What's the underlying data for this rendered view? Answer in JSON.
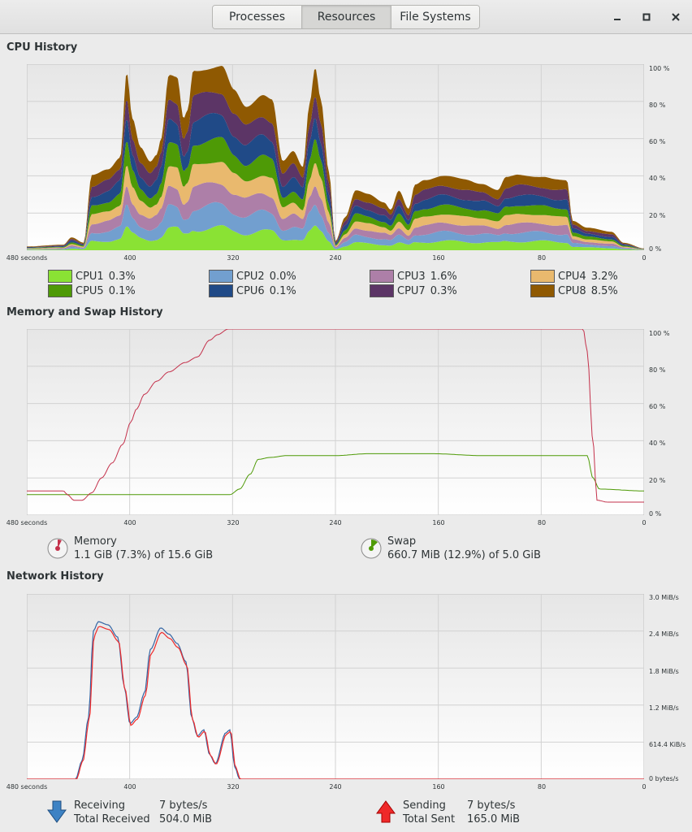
{
  "header": {
    "tabs": [
      {
        "label": "Processes",
        "active": false
      },
      {
        "label": "Resources",
        "active": true
      },
      {
        "label": "File Systems",
        "active": false
      }
    ]
  },
  "cpu": {
    "title": "CPU History",
    "x_ticks": [
      "480 seconds",
      "400",
      "320",
      "240",
      "160",
      "80",
      "0"
    ],
    "y_ticks": [
      "100 %",
      "80 %",
      "60 %",
      "40 %",
      "20 %",
      "0 %"
    ],
    "legend": [
      {
        "label": "CPU1",
        "value": "0.3%",
        "color": "#8ae234"
      },
      {
        "label": "CPU2",
        "value": "0.0%",
        "color": "#729fcf"
      },
      {
        "label": "CPU3",
        "value": "1.6%",
        "color": "#ad7fa8"
      },
      {
        "label": "CPU4",
        "value": "3.2%",
        "color": "#e9b96e"
      },
      {
        "label": "CPU5",
        "value": "0.1%",
        "color": "#4e9a06"
      },
      {
        "label": "CPU6",
        "value": "0.1%",
        "color": "#204a87"
      },
      {
        "label": "CPU7",
        "value": "0.3%",
        "color": "#5c3566"
      },
      {
        "label": "CPU8",
        "value": "8.5%",
        "color": "#8f5902"
      }
    ]
  },
  "memory": {
    "title": "Memory and Swap History",
    "x_ticks": [
      "480 seconds",
      "400",
      "320",
      "240",
      "160",
      "80",
      "0"
    ],
    "y_ticks": [
      "100 %",
      "80 %",
      "60 %",
      "40 %",
      "20 %",
      "0 %"
    ],
    "memory_label": "Memory",
    "memory_detail": "1.1 GiB (7.3%) of 15.6 GiB",
    "memory_fraction": 0.073,
    "memory_color": "#c4314b",
    "swap_label": "Swap",
    "swap_detail": "660.7 MiB (12.9%) of 5.0 GiB",
    "swap_fraction": 0.129,
    "swap_color": "#4e9a06"
  },
  "network": {
    "title": "Network History",
    "x_ticks": [
      "480 seconds",
      "400",
      "320",
      "240",
      "160",
      "80",
      "0"
    ],
    "y_ticks": [
      "3.0 MiB/s",
      "2.4 MiB/s",
      "1.8 MiB/s",
      "1.2 MiB/s",
      "614.4 KiB/s",
      "0 bytes/s"
    ],
    "receiving_label": "Receiving",
    "receiving_rate": "7 bytes/s",
    "total_received_label": "Total Received",
    "total_received": "504.0 MiB",
    "sending_label": "Sending",
    "sending_rate": "7 bytes/s",
    "total_sent_label": "Total Sent",
    "total_sent": "165.0 MiB",
    "receive_color": "#3465a4",
    "send_color": "#ef2929"
  },
  "icons": {
    "minimize": "minimize-icon",
    "maximize": "maximize-icon",
    "close": "close-icon",
    "receive": "arrow-down-icon",
    "send": "arrow-up-icon"
  }
}
